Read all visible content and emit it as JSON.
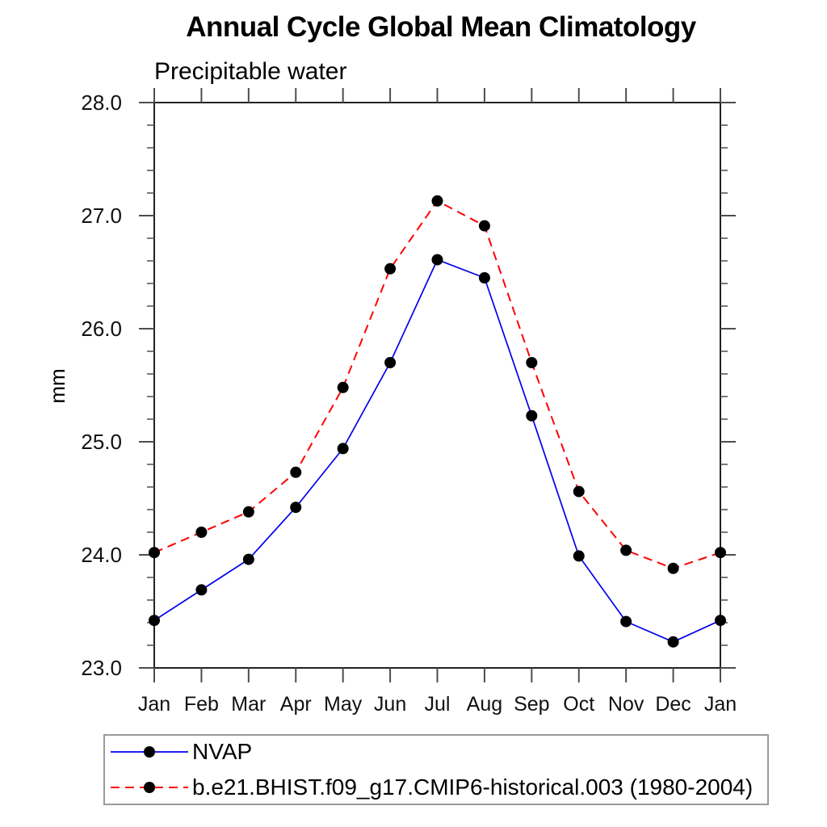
{
  "chart_data": {
    "type": "line",
    "title": "Annual Cycle Global Mean Climatology",
    "subtitle": "Precipitable water",
    "ylabel": "mm",
    "categories": [
      "Jan",
      "Feb",
      "Mar",
      "Apr",
      "May",
      "Jun",
      "Jul",
      "Aug",
      "Sep",
      "Oct",
      "Nov",
      "Dec",
      "Jan"
    ],
    "series": [
      {
        "name": "NVAP",
        "color": "#0000ee",
        "line_style": "solid",
        "marker": "filled-circle",
        "marker_color": "#000000",
        "values": [
          23.42,
          23.69,
          23.96,
          24.42,
          24.94,
          25.7,
          26.61,
          26.45,
          25.23,
          23.99,
          23.41,
          23.23,
          23.42
        ]
      },
      {
        "name": "b.e21.BHIST.f09_g17.CMIP6-historical.003 (1980-2004)",
        "color": "#ff0000",
        "line_style": "dashed",
        "marker": "filled-circle",
        "marker_color": "#000000",
        "values": [
          24.02,
          24.2,
          24.38,
          24.73,
          25.48,
          26.53,
          27.13,
          26.91,
          25.7,
          24.56,
          24.04,
          23.88,
          24.02
        ]
      }
    ],
    "ylim": [
      23.0,
      28.0
    ],
    "ytick_labels": [
      "23.0",
      "24.0",
      "25.0",
      "26.0",
      "27.0",
      "28.0"
    ],
    "y_minor_step": 0.2,
    "grid": false,
    "legend_position": "bottom-left-box",
    "axis_color": "#222222",
    "tick_color": "#4d4d4d"
  }
}
